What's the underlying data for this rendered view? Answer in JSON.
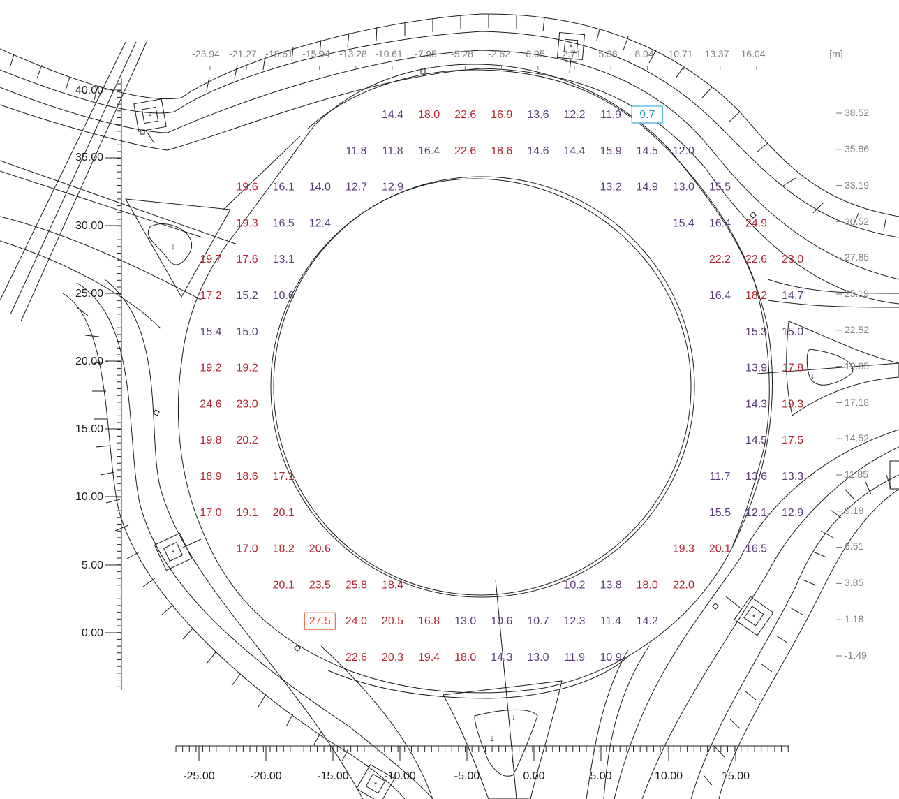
{
  "unit_label": "[m]",
  "colors": {
    "high_value": "#b3262e",
    "low_value": "#5a3c78",
    "max_box": "#e8502e",
    "min_box": "#1a9fd1",
    "axis": "#222222",
    "axis_text": "#1a1a1a",
    "gray_text": "#808080"
  },
  "top_scale_labels": [
    "-23.94",
    "-21.27",
    "-18.61",
    "-15.94",
    "-13.28",
    "-10.61",
    "-7.95",
    "-5.28",
    "-2.62",
    "0.05",
    "2.71",
    "5.38",
    "8.04",
    "10.71",
    "13.37",
    "16.04"
  ],
  "right_scale_labels": [
    "38.52",
    "35.86",
    "33.19",
    "30.52",
    "27.85",
    "25.19",
    "22.52",
    "19.85",
    "17.18",
    "14.52",
    "11.85",
    "9.18",
    "6.51",
    "3.85",
    "1.18",
    "-1.49"
  ],
  "left_axis_labels": [
    "40.00",
    "35.00",
    "30.00",
    "25.00",
    "20.00",
    "15.00",
    "10.00",
    "5.00",
    "0.00"
  ],
  "bottom_axis_labels": [
    "-25.00",
    "-20.00",
    "-15.00",
    "-10.00",
    "-5.00",
    "0.00",
    "5.00",
    "10.00",
    "15.00"
  ],
  "grid_rows": [
    {
      "cells": [
        [
          5,
          "14.4",
          "low"
        ],
        [
          6,
          "18.0",
          "high"
        ],
        [
          7,
          "22.6",
          "high"
        ],
        [
          8,
          "16.9",
          "high"
        ],
        [
          9,
          "13.6",
          "low"
        ],
        [
          10,
          "12.2",
          "low"
        ],
        [
          11,
          "11.9",
          "low"
        ],
        [
          12,
          "9.7",
          "min"
        ]
      ]
    },
    {
      "cells": [
        [
          4,
          "11.8",
          "low"
        ],
        [
          5,
          "11.8",
          "low"
        ],
        [
          6,
          "16.4",
          "low"
        ],
        [
          7,
          "22.6",
          "high"
        ],
        [
          8,
          "18.6",
          "high"
        ],
        [
          9,
          "14.6",
          "low"
        ],
        [
          10,
          "14.4",
          "low"
        ],
        [
          11,
          "15.9",
          "low"
        ],
        [
          12,
          "14.5",
          "low"
        ],
        [
          13,
          "12.0",
          "low"
        ]
      ]
    },
    {
      "cells": [
        [
          1,
          "19.6",
          "high"
        ],
        [
          2,
          "16.1",
          "low"
        ],
        [
          3,
          "14.0",
          "low"
        ],
        [
          4,
          "12.7",
          "low"
        ],
        [
          5,
          "12.9",
          "low"
        ],
        [
          11,
          "13.2",
          "low"
        ],
        [
          12,
          "14.9",
          "low"
        ],
        [
          13,
          "13.0",
          "low"
        ],
        [
          14,
          "15.5",
          "low"
        ]
      ]
    },
    {
      "cells": [
        [
          1,
          "19.3",
          "high"
        ],
        [
          2,
          "16.5",
          "low"
        ],
        [
          3,
          "12.4",
          "low"
        ],
        [
          13,
          "15.4",
          "low"
        ],
        [
          14,
          "16.4",
          "low"
        ],
        [
          15,
          "24.9",
          "high"
        ]
      ]
    },
    {
      "cells": [
        [
          0,
          "19.7",
          "high"
        ],
        [
          1,
          "17.6",
          "high"
        ],
        [
          2,
          "13.1",
          "low"
        ],
        [
          14,
          "22.2",
          "high"
        ],
        [
          15,
          "22.6",
          "high"
        ],
        [
          16,
          "23.0",
          "high"
        ]
      ]
    },
    {
      "cells": [
        [
          0,
          "17.2",
          "high"
        ],
        [
          1,
          "15.2",
          "low"
        ],
        [
          2,
          "10.6",
          "low"
        ],
        [
          14,
          "16.4",
          "low"
        ],
        [
          15,
          "18.2",
          "high"
        ],
        [
          16,
          "14.7",
          "low"
        ]
      ]
    },
    {
      "cells": [
        [
          0,
          "15.4",
          "low"
        ],
        [
          1,
          "15.0",
          "low"
        ],
        [
          15,
          "15.3",
          "low"
        ],
        [
          16,
          "15.0",
          "low"
        ]
      ]
    },
    {
      "cells": [
        [
          0,
          "19.2",
          "high"
        ],
        [
          1,
          "19.2",
          "high"
        ],
        [
          15,
          "13.9",
          "low"
        ],
        [
          16,
          "17.8",
          "high"
        ]
      ]
    },
    {
      "cells": [
        [
          0,
          "24.6",
          "high"
        ],
        [
          1,
          "23.0",
          "high"
        ],
        [
          15,
          "14.3",
          "low"
        ],
        [
          16,
          "19.3",
          "high"
        ]
      ]
    },
    {
      "cells": [
        [
          0,
          "19.8",
          "high"
        ],
        [
          1,
          "20.2",
          "high"
        ],
        [
          15,
          "14.5",
          "low"
        ],
        [
          16,
          "17.5",
          "high"
        ]
      ]
    },
    {
      "cells": [
        [
          0,
          "18.9",
          "high"
        ],
        [
          1,
          "18.6",
          "high"
        ],
        [
          2,
          "17.1",
          "high"
        ],
        [
          14,
          "11.7",
          "low"
        ],
        [
          15,
          "13.6",
          "low"
        ],
        [
          16,
          "13.3",
          "low"
        ]
      ]
    },
    {
      "cells": [
        [
          0,
          "17.0",
          "high"
        ],
        [
          1,
          "19.1",
          "high"
        ],
        [
          2,
          "20.1",
          "high"
        ],
        [
          14,
          "15.5",
          "low"
        ],
        [
          15,
          "12.1",
          "low"
        ],
        [
          16,
          "12.9",
          "low"
        ]
      ]
    },
    {
      "cells": [
        [
          1,
          "17.0",
          "high"
        ],
        [
          2,
          "18.2",
          "high"
        ],
        [
          3,
          "20.6",
          "high"
        ],
        [
          13,
          "19.3",
          "high"
        ],
        [
          14,
          "20.1",
          "high"
        ],
        [
          15,
          "16.5",
          "low"
        ]
      ]
    },
    {
      "cells": [
        [
          2,
          "20.1",
          "high"
        ],
        [
          3,
          "23.5",
          "high"
        ],
        [
          4,
          "25.8",
          "high"
        ],
        [
          5,
          "18.4",
          "high"
        ],
        [
          10,
          "10.2",
          "low"
        ],
        [
          11,
          "13.8",
          "low"
        ],
        [
          12,
          "18.0",
          "high"
        ],
        [
          13,
          "22.0",
          "high"
        ]
      ]
    },
    {
      "cells": [
        [
          3,
          "27.5",
          "max"
        ],
        [
          4,
          "24.0",
          "high"
        ],
        [
          5,
          "20.5",
          "high"
        ],
        [
          6,
          "16.8",
          "high"
        ],
        [
          7,
          "13.0",
          "low"
        ],
        [
          8,
          "10.6",
          "low"
        ],
        [
          9,
          "10.7",
          "low"
        ],
        [
          10,
          "12.3",
          "low"
        ],
        [
          11,
          "11.4",
          "low"
        ],
        [
          12,
          "14.2",
          "low"
        ]
      ]
    },
    {
      "cells": [
        [
          4,
          "22.6",
          "high"
        ],
        [
          5,
          "20.3",
          "high"
        ],
        [
          6,
          "19.4",
          "high"
        ],
        [
          7,
          "18.0",
          "high"
        ],
        [
          8,
          "14.3",
          "low"
        ],
        [
          9,
          "13.0",
          "low"
        ],
        [
          10,
          "11.9",
          "low"
        ],
        [
          11,
          "10.9",
          "low"
        ]
      ]
    }
  ]
}
